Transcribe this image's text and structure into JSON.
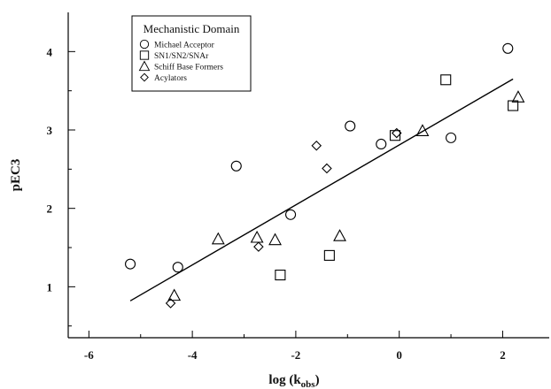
{
  "chart_data": {
    "type": "scatter",
    "xlabel": "log (k",
    "xlabel_sub": "obs",
    "xlabel_close": ")",
    "ylabel": "pEC3",
    "xlim": [
      -6.4,
      2.9
    ],
    "ylim": [
      0.35,
      4.5
    ],
    "xticks": [
      -6,
      -4,
      -2,
      0,
      2
    ],
    "yticks": [
      1,
      2,
      3,
      4
    ],
    "x_minor_ticks": [
      -5,
      -3,
      -1,
      1
    ],
    "y_minor_ticks": [
      0.5,
      1.5,
      2.5,
      3.5
    ],
    "grid": false,
    "legend": {
      "title": "Mechanistic Domain",
      "placement": "top-left"
    },
    "series": [
      {
        "name": "Michael Acceptor",
        "marker": "circle",
        "points": [
          [
            -5.2,
            1.29
          ],
          [
            -4.28,
            1.25
          ],
          [
            -3.15,
            2.54
          ],
          [
            -2.1,
            1.92
          ],
          [
            -0.95,
            3.05
          ],
          [
            -0.35,
            2.82
          ],
          [
            1.0,
            2.9
          ],
          [
            2.1,
            4.04
          ]
        ]
      },
      {
        "name": "SN1/SN2/SNAr",
        "marker": "square",
        "points": [
          [
            -2.3,
            1.15
          ],
          [
            -1.35,
            1.4
          ],
          [
            -0.08,
            2.93
          ],
          [
            0.9,
            3.64
          ],
          [
            2.2,
            3.31
          ]
        ]
      },
      {
        "name": "Schiff Base Formers",
        "marker": "triangle",
        "points": [
          [
            -4.35,
            0.89
          ],
          [
            -3.5,
            1.61
          ],
          [
            -2.75,
            1.63
          ],
          [
            -2.4,
            1.6
          ],
          [
            -1.15,
            1.65
          ],
          [
            0.45,
            2.99
          ],
          [
            2.3,
            3.42
          ]
        ]
      },
      {
        "name": "Acylators",
        "marker": "diamond",
        "points": [
          [
            -4.42,
            0.79
          ],
          [
            -2.72,
            1.51
          ],
          [
            -1.6,
            2.8
          ],
          [
            -1.4,
            2.51
          ],
          [
            -0.05,
            2.96
          ]
        ]
      }
    ],
    "fit_line": {
      "x": [
        -5.2,
        2.2
      ],
      "y": [
        0.82,
        3.65
      ]
    }
  }
}
